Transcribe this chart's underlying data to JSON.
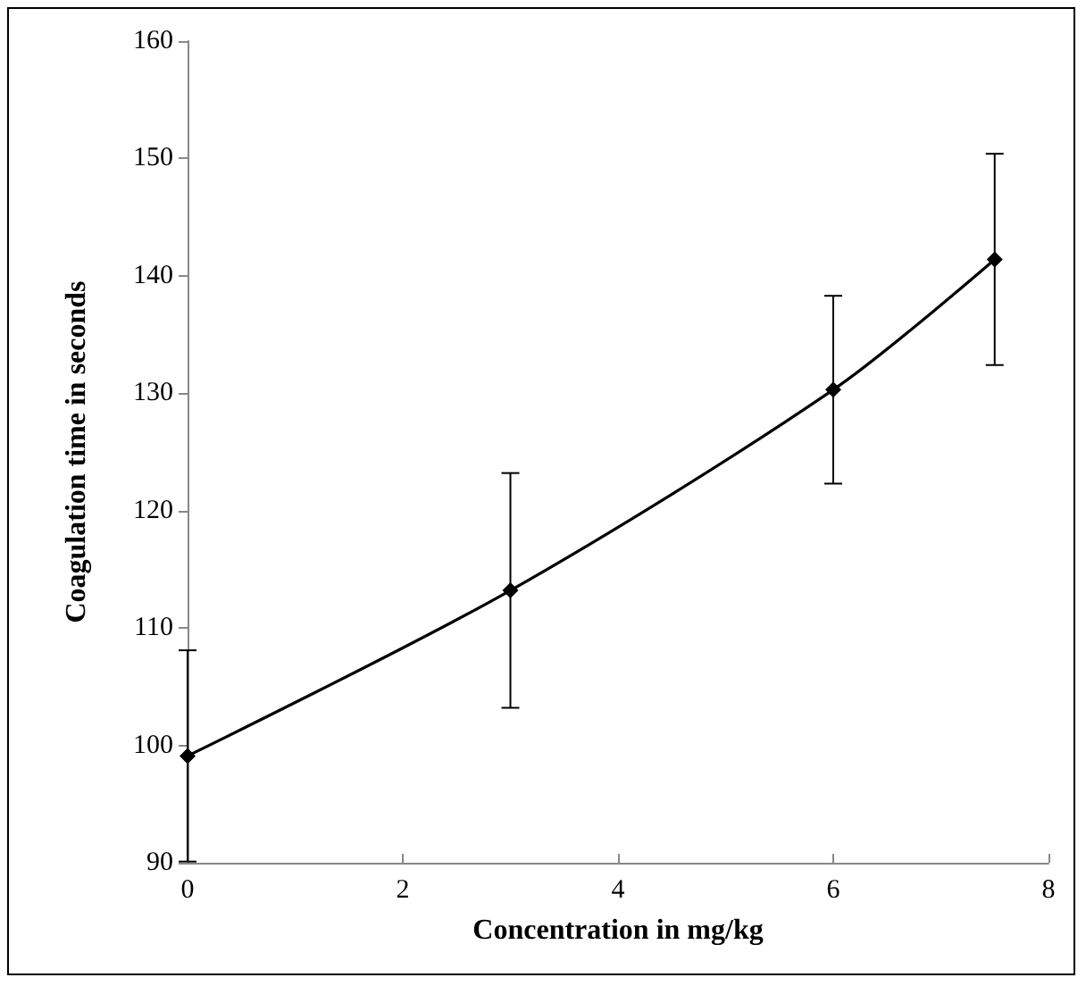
{
  "chart_data": {
    "type": "line",
    "xlabel": "Concentration in mg/kg",
    "ylabel": "Coagulation time in seconds",
    "x": [
      0,
      3,
      6,
      7.5
    ],
    "series": [
      {
        "color": "#000000",
        "values": [
          99.1,
          113.2,
          130.3,
          141.4
        ],
        "errors": [
          9,
          10,
          8,
          9
        ]
      }
    ],
    "xlim": [
      0,
      8
    ],
    "xticks": [
      0,
      2,
      4,
      6,
      8
    ],
    "ylim": [
      90,
      160
    ],
    "yticks": [
      90,
      100,
      110,
      120,
      130,
      140,
      150,
      160
    ],
    "grid": false,
    "marker": "diamond",
    "line_style": "solid"
  }
}
